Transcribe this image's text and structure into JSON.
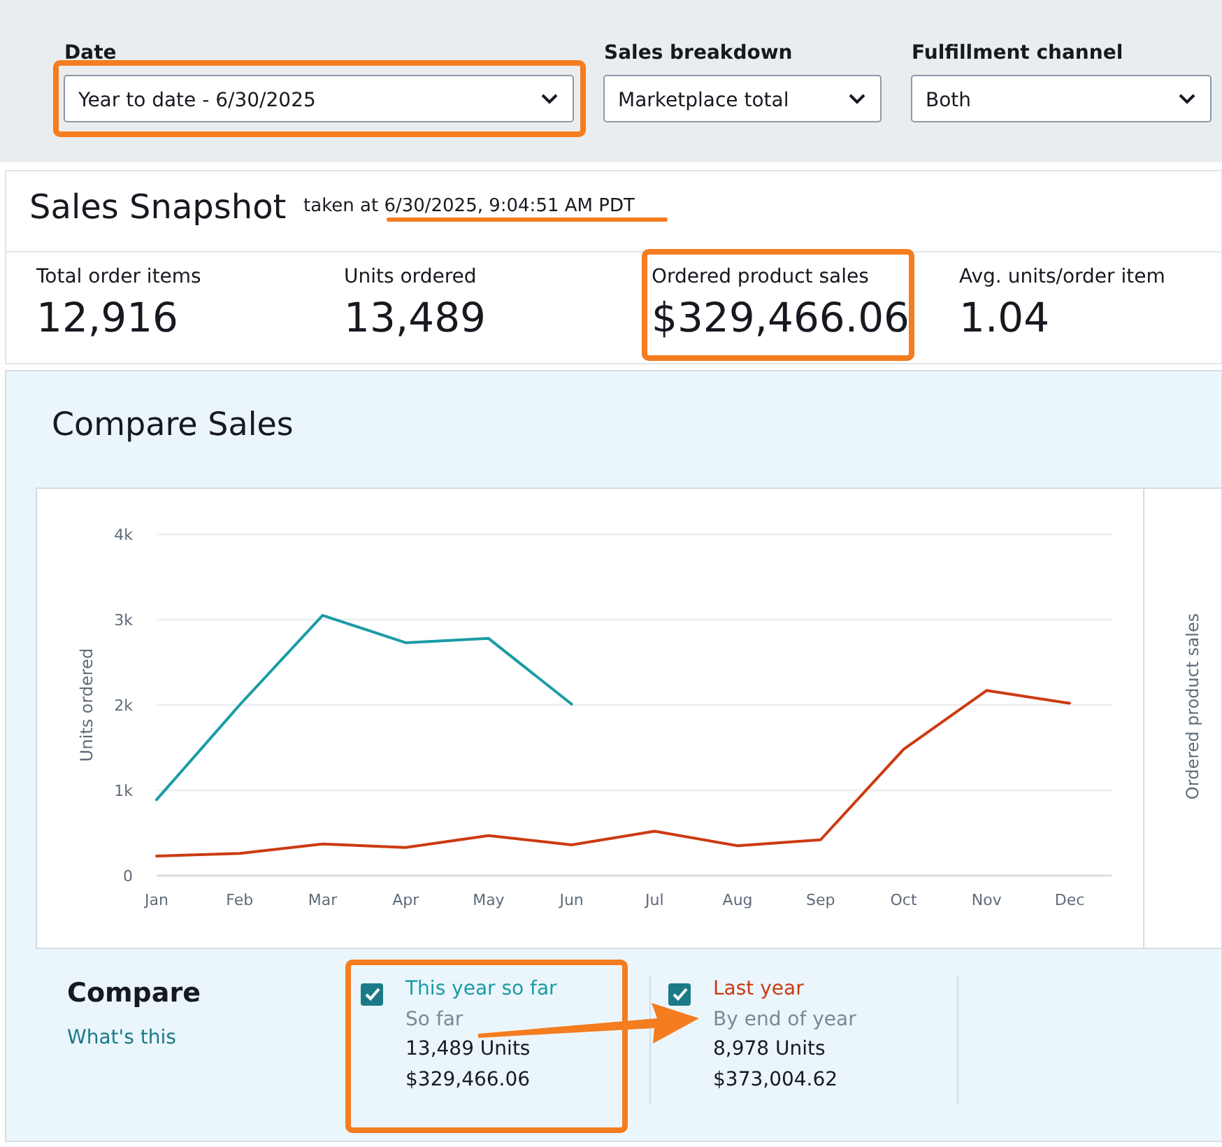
{
  "chart_data": [
    {
      "type": "other",
      "title": "Sales Snapshot",
      "subtitle": "taken at 6/30/2025, 9:04:51 AM PDT",
      "annotations": [
        "Date",
        "Year to date - 6/30/2025",
        "Sales breakdown",
        "Marketplace total",
        "Fulfillment channel",
        "Both",
        "Total order items",
        "12,916",
        "Units ordered",
        "13,489",
        "Ordered product sales",
        "$329,466.06",
        "Avg. units/order item",
        "1.04"
      ]
    },
    {
      "type": "line",
      "title": "Compare Sales",
      "ylabel": "Units ordered",
      "y2label": "Ordered product sales",
      "categories": [
        "Jan",
        "Feb",
        "Mar",
        "Apr",
        "May",
        "Jun",
        "Jul",
        "Aug",
        "Sep",
        "Oct",
        "Nov",
        "Dec"
      ],
      "series": [
        {
          "name": "This year so far",
          "color": "#1b9ca6",
          "values": [
            890,
            2000,
            3050,
            2730,
            2780,
            2010,
            null,
            null,
            null,
            null,
            null,
            null
          ]
        },
        {
          "name": "Last year",
          "color": "#cc3b12",
          "values": [
            230,
            260,
            370,
            330,
            470,
            360,
            520,
            350,
            420,
            1480,
            2170,
            2020
          ]
        }
      ],
      "ylim": [
        0,
        4000
      ],
      "yticks": [
        0,
        {
          "value": 1000,
          "label": "1k"
        },
        {
          "value": 2000,
          "label": "2k"
        },
        {
          "value": 3000,
          "label": "3k"
        },
        {
          "value": 4000,
          "label": "4k"
        }
      ],
      "grid": "y",
      "legend": "bottom",
      "marker": "none",
      "line_style": "solid",
      "annotations": [
        "Compare",
        "What's this",
        "So far",
        "13,489 Units",
        "$329,466.06",
        "By end of year",
        "8,978 Units",
        "$373,004.62"
      ]
    }
  ]
}
